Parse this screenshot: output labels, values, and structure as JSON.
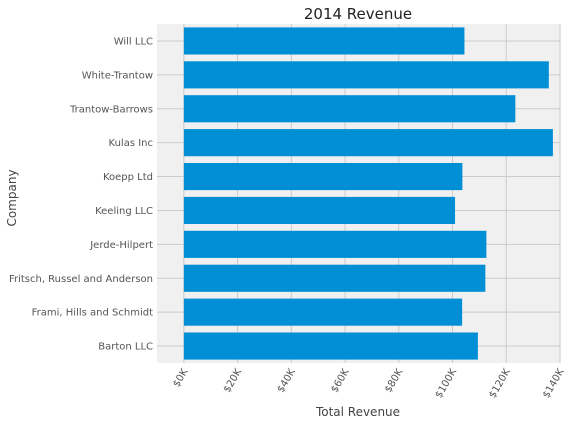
{
  "chart_data": {
    "type": "bar",
    "orientation": "horizontal",
    "title": "2014 Revenue",
    "xlabel": "Total Revenue",
    "ylabel": "Company",
    "categories": [
      "Barton LLC",
      "Frami, Hills and Schmidt",
      "Fritsch, Russel and Anderson",
      "Jerde-Hilpert",
      "Keeling LLC",
      "Koepp Ltd",
      "Kulas Inc",
      "Trantow-Barrows",
      "White-Trantow",
      "Will LLC"
    ],
    "values": [
      109438,
      103569,
      112214,
      112591,
      100934,
      103660,
      137352,
      123381,
      135841,
      104437
    ],
    "xlim": [
      -10000,
      140000
    ],
    "xticks": [
      0,
      20000,
      40000,
      60000,
      80000,
      100000,
      120000,
      140000
    ],
    "xtick_labels": [
      "$0K",
      "$20K",
      "$40K",
      "$60K",
      "$80K",
      "$100K",
      "$120K",
      "$140K"
    ],
    "grid": true,
    "colors": {
      "bar": "#008fd5",
      "background": "#f0f0f0",
      "grid": "#cbcbcb"
    }
  }
}
